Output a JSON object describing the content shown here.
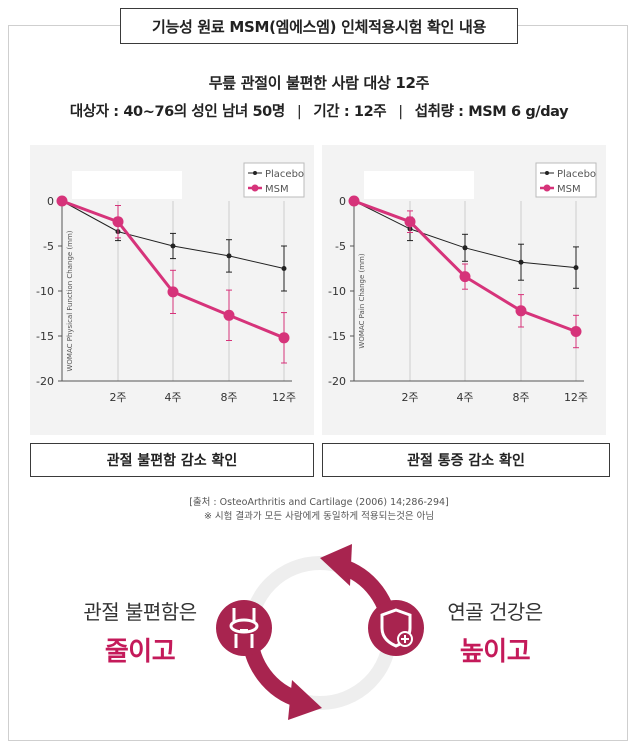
{
  "title": "기능성 원료 MSM(엠에스엠) 인체적용시험 확인 내용",
  "subtitle1": "무릎 관절이 불편한 사람 대상 12주",
  "subtitle2": {
    "subjects": "대상자 : 40~76의 성인 남녀 50명",
    "separator": "|",
    "period": "기간 : 12주",
    "dose": "섭취량 : MSM 6 g/day"
  },
  "colors": {
    "accent": "#d6337a",
    "placebo": "#222222",
    "brand": "#a8244f",
    "grid": "#cccccc"
  },
  "chart_data": [
    {
      "type": "line",
      "title": "",
      "xlabel": "",
      "ylabel": "WOMAC Physical Function Change (mm)",
      "categories": [
        "0",
        "2주",
        "4주",
        "8주",
        "12주"
      ],
      "x_tick_labels": [
        "2주",
        "4주",
        "8주",
        "12주"
      ],
      "y_tick_labels": [
        "0",
        "-5",
        "-10",
        "-15",
        "-20"
      ],
      "ylim": [
        -20,
        0
      ],
      "legend": "top-right",
      "grid": true,
      "series": [
        {
          "name": "Placebo",
          "values": [
            0,
            -3.4,
            -5.0,
            -6.1,
            -7.5
          ],
          "err": [
            0,
            1.0,
            1.4,
            1.8,
            2.5
          ]
        },
        {
          "name": "MSM",
          "values": [
            0,
            -2.3,
            -10.1,
            -12.7,
            -15.2
          ],
          "err": [
            0,
            1.8,
            2.4,
            2.8,
            2.8
          ]
        }
      ]
    },
    {
      "type": "line",
      "title": "",
      "xlabel": "",
      "ylabel": "WOMAC Pain Change (mm)",
      "categories": [
        "0",
        "2주",
        "4주",
        "8주",
        "12주"
      ],
      "x_tick_labels": [
        "2주",
        "4주",
        "8주",
        "12주"
      ],
      "y_tick_labels": [
        "0",
        "-5",
        "-10",
        "-15",
        "-20"
      ],
      "ylim": [
        -20,
        0
      ],
      "legend": "top-right",
      "grid": true,
      "series": [
        {
          "name": "Placebo",
          "values": [
            0,
            -3.1,
            -5.2,
            -6.8,
            -7.4
          ],
          "err": [
            0,
            1.3,
            1.5,
            2.0,
            2.3
          ]
        },
        {
          "name": "MSM",
          "values": [
            0,
            -2.3,
            -8.4,
            -12.2,
            -14.5
          ],
          "err": [
            0,
            1.2,
            1.4,
            1.8,
            1.8
          ]
        }
      ]
    }
  ],
  "results": [
    "관절 불편함 감소 확인",
    "관절 통증 감소 확인"
  ],
  "source": {
    "citation": "[출처 : OsteoArthritis and Cartilage (2006) 14;286-294]",
    "disclaimer": "※ 시험 결과가 모든 사람에게 동일하게 적용되는것은 아님"
  },
  "left_text": {
    "line1": "관절 불편함은",
    "line2": "줄이고"
  },
  "right_text": {
    "line1": "연골 건강은",
    "line2": "높이고"
  },
  "icons": {
    "left": "joint-icon",
    "right": "shield-plus-icon"
  }
}
